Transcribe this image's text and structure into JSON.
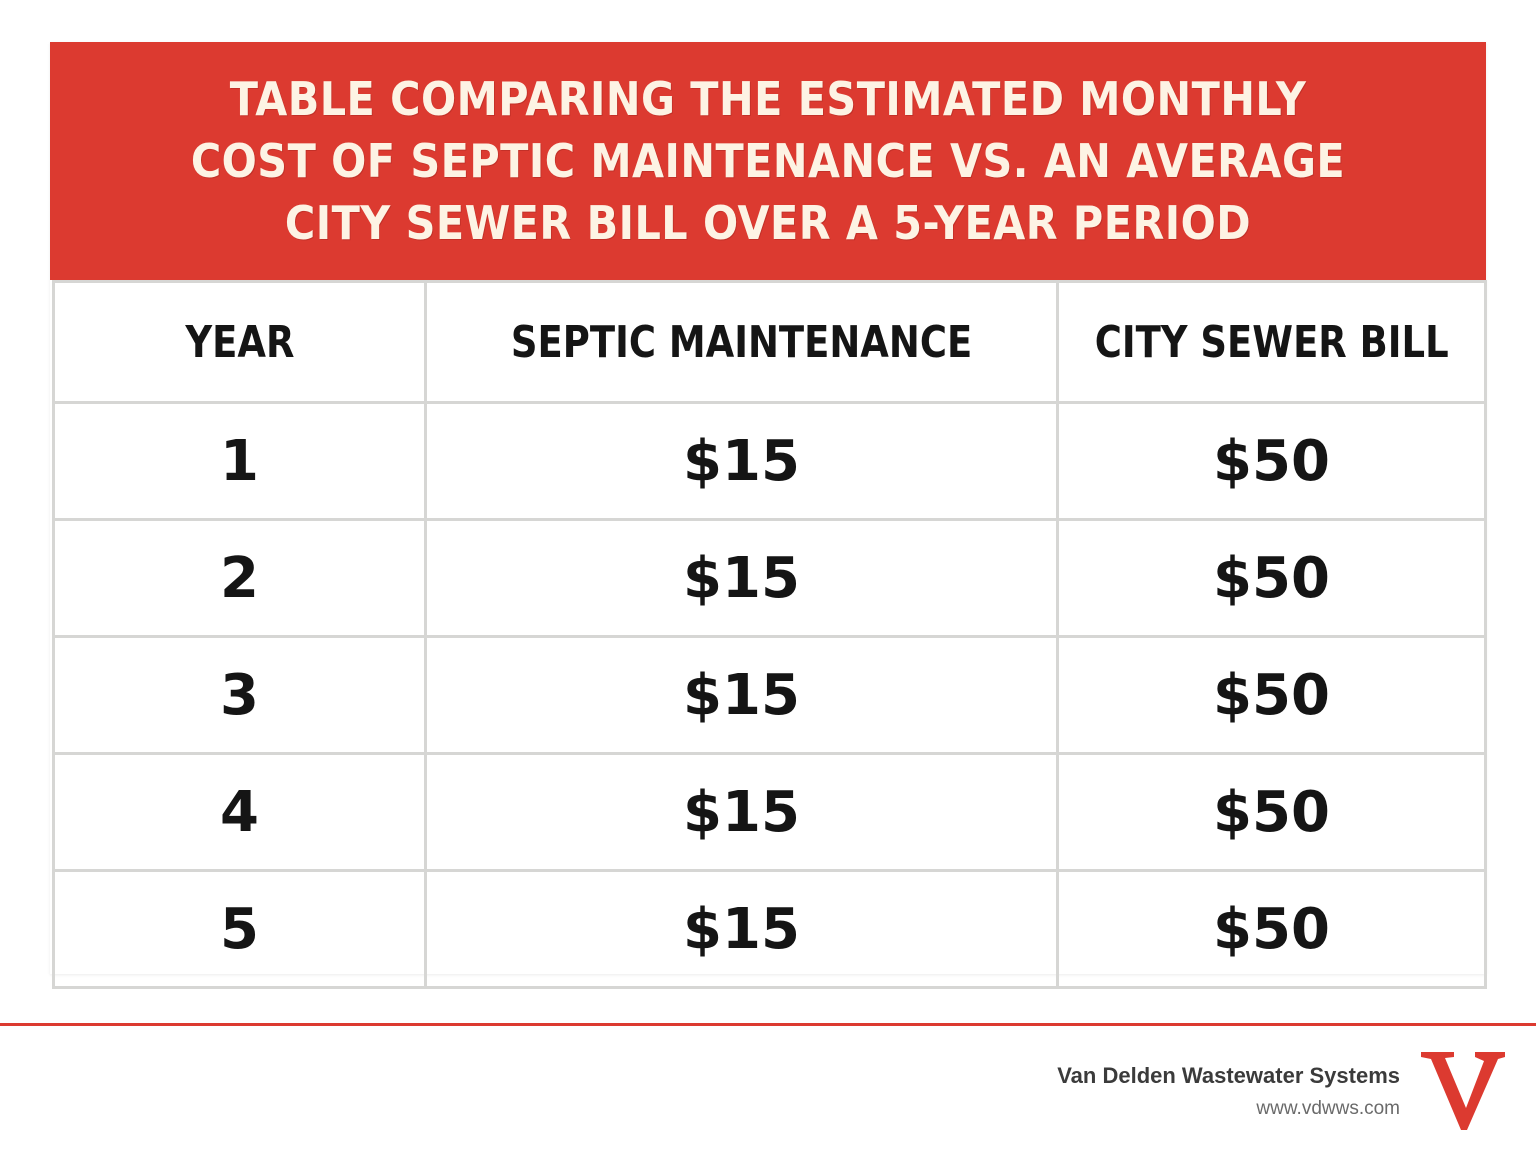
{
  "title": "TABLE COMPARING THE ESTIMATED MONTHLY COST OF SEPTIC MAINTENANCE VS. AN AVERAGE CITY SEWER BILL OVER A 5-YEAR PERIOD",
  "colors": {
    "accent": "#dc3a30",
    "title_text": "#fdf3e4",
    "grid": "#d6d6d4",
    "text": "#151515"
  },
  "chart_data": {
    "type": "table",
    "title": "TABLE COMPARING THE ESTIMATED MONTHLY COST OF SEPTIC MAINTENANCE VS. AN AVERAGE CITY SEWER BILL OVER A 5-YEAR PERIOD",
    "columns": [
      "YEAR",
      "SEPTIC MAINTENANCE",
      "CITY SEWER BILL"
    ],
    "rows": [
      [
        "1",
        "$15",
        "$50"
      ],
      [
        "2",
        "$15",
        "$50"
      ],
      [
        "3",
        "$15",
        "$50"
      ],
      [
        "4",
        "$15",
        "$50"
      ],
      [
        "5",
        "$15",
        "$50"
      ]
    ]
  },
  "footer": {
    "company": "Van Delden Wastewater Systems",
    "url": "www.vdwws.com",
    "logo_icon": "v-logo-icon"
  }
}
